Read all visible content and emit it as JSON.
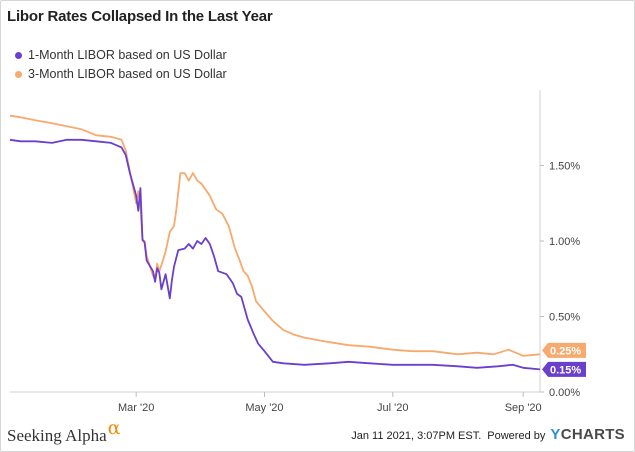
{
  "title": "Libor Rates Collapsed In the Last Year",
  "legend": [
    {
      "label": "1-Month LIBOR based on US Dollar",
      "color": "#6a3fcd"
    },
    {
      "label": "3-Month LIBOR based on US Dollar",
      "color": "#f7a96e"
    }
  ],
  "footer": {
    "brand": "Seeking Alpha",
    "brand_symbol": "α",
    "timestamp": "Jan 11 2021, 3:07PM EST.",
    "powered_by": "Powered by",
    "logo_y": "Y",
    "logo_rest": "CHARTS"
  },
  "colors": {
    "accent_alpha": "#f28b0c",
    "ycharts_blue": "#2d8fd5"
  },
  "chart_data": {
    "type": "line",
    "title": "Libor Rates Collapsed In the Last Year",
    "xlabel": "",
    "ylabel": "",
    "y_axis_side": "right",
    "ylim": [
      0.0,
      2.0
    ],
    "y_ticks": [
      {
        "value": 0.0,
        "label": "0.00%"
      },
      {
        "value": 0.5,
        "label": "0.50%"
      },
      {
        "value": 1.0,
        "label": "1.00%"
      },
      {
        "value": 1.5,
        "label": "1.50%"
      }
    ],
    "x_range": [
      "2020-01-01",
      "2020-09-09"
    ],
    "x_ticks": [
      {
        "date": "2020-03-01",
        "label": "Mar '20"
      },
      {
        "date": "2020-05-01",
        "label": "May '20"
      },
      {
        "date": "2020-07-01",
        "label": "Jul '20"
      },
      {
        "date": "2020-09-01",
        "label": "Sep '20"
      }
    ],
    "grid": false,
    "legend_position": "top-left",
    "series": [
      {
        "name": "1-Month LIBOR based on US Dollar",
        "color": "#6a3fcd",
        "end_label": "0.15%",
        "points": [
          [
            "2020-01-01",
            1.67
          ],
          [
            "2020-01-06",
            1.66
          ],
          [
            "2020-01-13",
            1.66
          ],
          [
            "2020-01-21",
            1.65
          ],
          [
            "2020-01-28",
            1.67
          ],
          [
            "2020-02-04",
            1.67
          ],
          [
            "2020-02-11",
            1.66
          ],
          [
            "2020-02-18",
            1.65
          ],
          [
            "2020-02-23",
            1.62
          ],
          [
            "2020-02-25",
            1.57
          ],
          [
            "2020-02-27",
            1.45
          ],
          [
            "2020-03-01",
            1.3
          ],
          [
            "2020-03-02",
            1.2
          ],
          [
            "2020-03-03",
            1.35
          ],
          [
            "2020-03-04",
            1.01
          ],
          [
            "2020-03-05",
            0.99
          ],
          [
            "2020-03-06",
            0.87
          ],
          [
            "2020-03-09",
            0.8
          ],
          [
            "2020-03-10",
            0.73
          ],
          [
            "2020-03-11",
            0.82
          ],
          [
            "2020-03-12",
            0.79
          ],
          [
            "2020-03-13",
            0.68
          ],
          [
            "2020-03-15",
            0.78
          ],
          [
            "2020-03-17",
            0.62
          ],
          [
            "2020-03-18",
            0.74
          ],
          [
            "2020-03-19",
            0.83
          ],
          [
            "2020-03-21",
            0.94
          ],
          [
            "2020-03-24",
            0.95
          ],
          [
            "2020-03-26",
            0.98
          ],
          [
            "2020-03-28",
            0.95
          ],
          [
            "2020-03-30",
            1.0
          ],
          [
            "2020-04-01",
            0.98
          ],
          [
            "2020-04-03",
            1.02
          ],
          [
            "2020-04-05",
            0.98
          ],
          [
            "2020-04-07",
            0.9
          ],
          [
            "2020-04-09",
            0.8
          ],
          [
            "2020-04-13",
            0.78
          ],
          [
            "2020-04-16",
            0.72
          ],
          [
            "2020-04-18",
            0.65
          ],
          [
            "2020-04-20",
            0.63
          ],
          [
            "2020-04-23",
            0.48
          ],
          [
            "2020-04-26",
            0.38
          ],
          [
            "2020-04-28",
            0.32
          ],
          [
            "2020-05-01",
            0.27
          ],
          [
            "2020-05-05",
            0.2
          ],
          [
            "2020-05-10",
            0.19
          ],
          [
            "2020-05-20",
            0.18
          ],
          [
            "2020-06-01",
            0.19
          ],
          [
            "2020-06-10",
            0.2
          ],
          [
            "2020-06-20",
            0.19
          ],
          [
            "2020-07-01",
            0.18
          ],
          [
            "2020-07-10",
            0.18
          ],
          [
            "2020-07-20",
            0.18
          ],
          [
            "2020-08-01",
            0.17
          ],
          [
            "2020-08-10",
            0.16
          ],
          [
            "2020-08-20",
            0.17
          ],
          [
            "2020-08-27",
            0.18
          ],
          [
            "2020-09-01",
            0.16
          ],
          [
            "2020-09-09",
            0.15
          ]
        ]
      },
      {
        "name": "3-Month LIBOR based on US Dollar",
        "color": "#f7a96e",
        "end_label": "0.25%",
        "points": [
          [
            "2020-01-01",
            1.83
          ],
          [
            "2020-01-06",
            1.82
          ],
          [
            "2020-01-13",
            1.8
          ],
          [
            "2020-01-21",
            1.78
          ],
          [
            "2020-01-28",
            1.76
          ],
          [
            "2020-02-04",
            1.74
          ],
          [
            "2020-02-11",
            1.7
          ],
          [
            "2020-02-18",
            1.69
          ],
          [
            "2020-02-23",
            1.67
          ],
          [
            "2020-02-25",
            1.6
          ],
          [
            "2020-02-27",
            1.46
          ],
          [
            "2020-03-01",
            1.25
          ],
          [
            "2020-03-02",
            1.33
          ],
          [
            "2020-03-03",
            1.24
          ],
          [
            "2020-03-04",
            1.0
          ],
          [
            "2020-03-05",
            1.0
          ],
          [
            "2020-03-06",
            0.9
          ],
          [
            "2020-03-09",
            0.77
          ],
          [
            "2020-03-10",
            0.75
          ],
          [
            "2020-03-11",
            0.85
          ],
          [
            "2020-03-12",
            0.8
          ],
          [
            "2020-03-13",
            0.84
          ],
          [
            "2020-03-15",
            0.93
          ],
          [
            "2020-03-17",
            1.06
          ],
          [
            "2020-03-19",
            1.1
          ],
          [
            "2020-03-20",
            1.2
          ],
          [
            "2020-03-22",
            1.45
          ],
          [
            "2020-03-24",
            1.45
          ],
          [
            "2020-03-26",
            1.4
          ],
          [
            "2020-03-28",
            1.45
          ],
          [
            "2020-03-30",
            1.4
          ],
          [
            "2020-04-01",
            1.38
          ],
          [
            "2020-04-05",
            1.3
          ],
          [
            "2020-04-08",
            1.21
          ],
          [
            "2020-04-11",
            1.18
          ],
          [
            "2020-04-14",
            1.1
          ],
          [
            "2020-04-17",
            0.95
          ],
          [
            "2020-04-19",
            0.88
          ],
          [
            "2020-04-21",
            0.8
          ],
          [
            "2020-04-23",
            0.77
          ],
          [
            "2020-04-25",
            0.7
          ],
          [
            "2020-04-27",
            0.6
          ],
          [
            "2020-04-30",
            0.55
          ],
          [
            "2020-05-05",
            0.47
          ],
          [
            "2020-05-10",
            0.41
          ],
          [
            "2020-05-15",
            0.38
          ],
          [
            "2020-05-20",
            0.36
          ],
          [
            "2020-06-01",
            0.33
          ],
          [
            "2020-06-10",
            0.31
          ],
          [
            "2020-06-20",
            0.3
          ],
          [
            "2020-07-01",
            0.28
          ],
          [
            "2020-07-10",
            0.27
          ],
          [
            "2020-07-20",
            0.27
          ],
          [
            "2020-08-01",
            0.25
          ],
          [
            "2020-08-10",
            0.26
          ],
          [
            "2020-08-18",
            0.25
          ],
          [
            "2020-08-25",
            0.28
          ],
          [
            "2020-09-01",
            0.24
          ],
          [
            "2020-09-09",
            0.25
          ]
        ]
      }
    ]
  }
}
